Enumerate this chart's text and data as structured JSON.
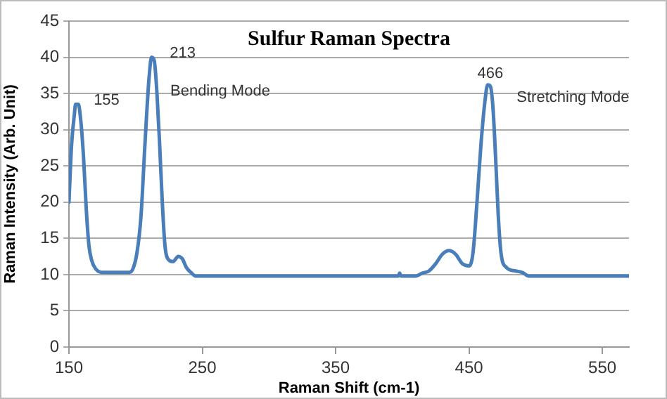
{
  "chart_data": {
    "type": "line",
    "title": "Sulfur Raman Spectra",
    "xlabel": "Raman Shift (cm-1)",
    "ylabel": "Raman Intensity (Arb. Unit)",
    "x": [
      150,
      152,
      154,
      155,
      157,
      159,
      161,
      163,
      165,
      167,
      170,
      175,
      185,
      195,
      198,
      201,
      204,
      207,
      210,
      212,
      214,
      216,
      218,
      220,
      222,
      225,
      228,
      232,
      235,
      238,
      242,
      245,
      300,
      397,
      398,
      399,
      410,
      415,
      420,
      425,
      430,
      435,
      440,
      445,
      450,
      453,
      456,
      459,
      462,
      464,
      466,
      468,
      470,
      472,
      474,
      478,
      485,
      490,
      495,
      570
    ],
    "series": [
      {
        "color": "#4a7ebb",
        "values": [
          20,
          28,
          32,
          33.5,
          33.5,
          31,
          26,
          19,
          14,
          12,
          10.8,
          10.3,
          10.3,
          10.3,
          10.8,
          13,
          18,
          28,
          37,
          40,
          39.5,
          35,
          28,
          20,
          14,
          12,
          11.8,
          12.5,
          12.2,
          11,
          10.2,
          9.8,
          9.8,
          9.8,
          10.2,
          9.8,
          9.8,
          10.2,
          10.5,
          11.5,
          12.8,
          13.3,
          12.8,
          11.5,
          11.2,
          13,
          20,
          28,
          34,
          36.2,
          36,
          33,
          26,
          18,
          13,
          11,
          10.5,
          10.3,
          9.8,
          9.8
        ]
      }
    ],
    "xlim": [
      150,
      570
    ],
    "xticks": [
      150,
      250,
      350,
      450,
      550
    ],
    "ylim": [
      0,
      45
    ],
    "yticks": [
      0,
      5,
      10,
      15,
      20,
      25,
      30,
      35,
      40,
      45
    ],
    "grid": "y",
    "legend": false,
    "marker": "none",
    "line_style": "solid",
    "annotations": [
      {
        "text": "155",
        "x": 155,
        "y": 33.5
      },
      {
        "text": "213",
        "x": 212,
        "y": 40
      },
      "Bending Mode",
      {
        "text": "466",
        "x": 466,
        "y": 36
      },
      "Stretching Mode"
    ]
  }
}
